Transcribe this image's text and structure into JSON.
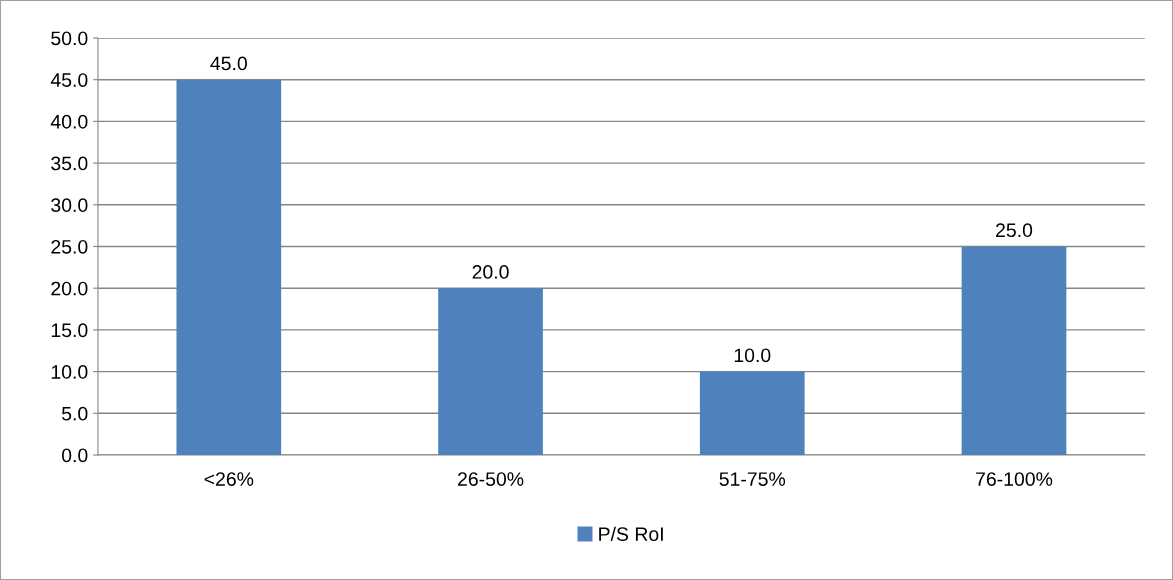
{
  "chart_data": {
    "type": "bar",
    "categories": [
      "<26%",
      "26-50%",
      "51-75%",
      "76-100%"
    ],
    "series": [
      {
        "name": "P/S RoI",
        "color": "#4f81bd",
        "values": [
          45.0,
          20.0,
          10.0,
          25.0
        ],
        "value_labels": [
          "45.0",
          "20.0",
          "10.0",
          "25.0"
        ]
      }
    ],
    "ylim": [
      0,
      50
    ],
    "yticks": [
      {
        "value": 0,
        "label": "0.0"
      },
      {
        "value": 5,
        "label": "5.0"
      },
      {
        "value": 10,
        "label": "10.0"
      },
      {
        "value": 15,
        "label": "15.0"
      },
      {
        "value": 20,
        "label": "20.0"
      },
      {
        "value": 25,
        "label": "25.0"
      },
      {
        "value": 30,
        "label": "30.0"
      },
      {
        "value": 35,
        "label": "35.0"
      },
      {
        "value": 40,
        "label": "40.0"
      },
      {
        "value": 45,
        "label": "45.0"
      },
      {
        "value": 50,
        "label": "50.0"
      }
    ],
    "grid": "y",
    "legend": "bottom"
  }
}
